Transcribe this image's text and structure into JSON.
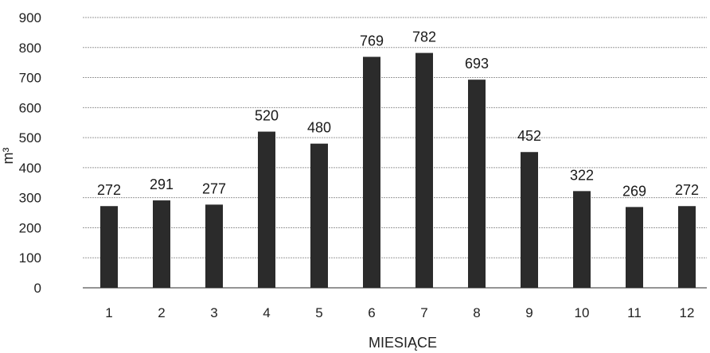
{
  "chart_data": {
    "type": "bar",
    "categories": [
      "1",
      "2",
      "3",
      "4",
      "5",
      "6",
      "7",
      "8",
      "9",
      "10",
      "11",
      "12"
    ],
    "values": [
      272,
      291,
      277,
      520,
      480,
      769,
      782,
      693,
      452,
      322,
      269,
      272
    ],
    "data_labels": [
      "272",
      "291",
      "277",
      "520",
      "480",
      "769",
      "782",
      "693",
      "452",
      "322",
      "269",
      "272"
    ],
    "title": "",
    "xlabel": "MIESIĄCE",
    "ylabel": "m³",
    "ylim": [
      0,
      900
    ],
    "yticks": [
      "0",
      "100",
      "200",
      "300",
      "400",
      "500",
      "600",
      "700",
      "800",
      "900"
    ],
    "grid": true,
    "legend": "none",
    "colors": {
      "bar": "#2b2b2b",
      "grid": "#9a9a9a"
    }
  }
}
